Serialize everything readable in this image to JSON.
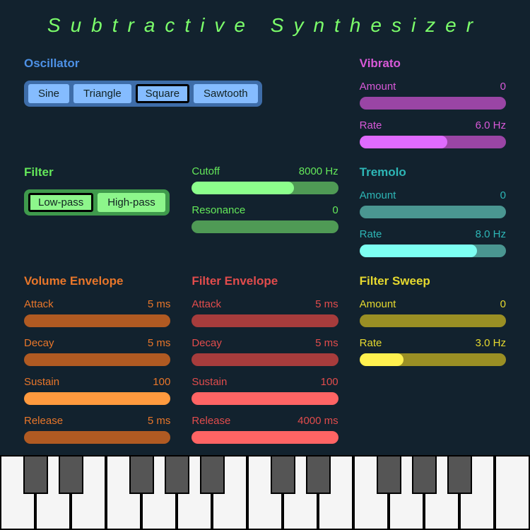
{
  "title": "Subtractive Synthesizer",
  "title_color": "#7cff6b",
  "oscillator": {
    "heading": "Oscillator",
    "heading_color": "#4d91e6",
    "group_bg": "#3e6da9",
    "btn_bg": "#85bcff",
    "btn_fg": "#122",
    "options": [
      "Sine",
      "Triangle",
      "Square",
      "Sawtooth"
    ],
    "selected_index": 2
  },
  "filter": {
    "heading": "Filter",
    "heading_color": "#64e85a",
    "group_bg": "#3f9a4c",
    "btn_bg": "#8df68b",
    "btn_fg": "#122",
    "options": [
      "Low-pass",
      "High-pass"
    ],
    "selected_index": 0,
    "params": [
      {
        "label": "Cutoff",
        "value_text": "8000 Hz",
        "fill_pct": 70,
        "track": "#4f9a55",
        "fill": "#8cff8c"
      },
      {
        "label": "Resonance",
        "value_text": "0",
        "fill_pct": 0,
        "track": "#4f9a55",
        "fill": "#8cff8c"
      }
    ]
  },
  "vol_env": {
    "heading": "Volume Envelope",
    "heading_color": "#e8762a",
    "text_color": "#e8762a",
    "params": [
      {
        "label": "Attack",
        "value_text": "5 ms",
        "fill_pct": 0,
        "track": "#b05a22",
        "fill": "#ff9a3e"
      },
      {
        "label": "Decay",
        "value_text": "5 ms",
        "fill_pct": 0,
        "track": "#b05a22",
        "fill": "#ff9a3e"
      },
      {
        "label": "Sustain",
        "value_text": "100",
        "fill_pct": 100,
        "track": "#b05a22",
        "fill": "#ff9a3e"
      },
      {
        "label": "Release",
        "value_text": "5 ms",
        "fill_pct": 0,
        "track": "#b05a22",
        "fill": "#ff9a3e"
      }
    ]
  },
  "filt_env": {
    "heading": "Filter Envelope",
    "heading_color": "#e14c4c",
    "text_color": "#e14c4c",
    "params": [
      {
        "label": "Attack",
        "value_text": "5 ms",
        "fill_pct": 0,
        "track": "#a73c3c",
        "fill": "#ff6464"
      },
      {
        "label": "Decay",
        "value_text": "5 ms",
        "fill_pct": 0,
        "track": "#a73c3c",
        "fill": "#ff6464"
      },
      {
        "label": "Sustain",
        "value_text": "100",
        "fill_pct": 100,
        "track": "#a73c3c",
        "fill": "#ff6464"
      },
      {
        "label": "Release",
        "value_text": "4000 ms",
        "fill_pct": 100,
        "track": "#a73c3c",
        "fill": "#ff6464"
      }
    ]
  },
  "vibrato": {
    "heading": "Vibrato",
    "heading_color": "#d859d8",
    "text_color": "#d859d8",
    "params": [
      {
        "label": "Amount",
        "value_text": "0",
        "fill_pct": 0,
        "track": "#9a45a5",
        "fill": "#df6bff"
      },
      {
        "label": "Rate",
        "value_text": "6.0 Hz",
        "fill_pct": 60,
        "track": "#9a45a5",
        "fill": "#df6bff"
      }
    ]
  },
  "tremolo": {
    "heading": "Tremolo",
    "heading_color": "#2db6b6",
    "text_color": "#2db6b6",
    "params": [
      {
        "label": "Amount",
        "value_text": "0",
        "fill_pct": 0,
        "track": "#4a9691",
        "fill": "#7dfff2"
      },
      {
        "label": "Rate",
        "value_text": "8.0 Hz",
        "fill_pct": 80,
        "track": "#4a9691",
        "fill": "#7dfff2"
      }
    ]
  },
  "sweep": {
    "heading": "Filter Sweep",
    "heading_color": "#e6d92f",
    "text_color": "#e6d92f",
    "params": [
      {
        "label": "Amount",
        "value_text": "0",
        "fill_pct": 0,
        "track": "#9a8f24",
        "fill": "#fff14f"
      },
      {
        "label": "Rate",
        "value_text": "3.0 Hz",
        "fill_pct": 30,
        "track": "#9a8f24",
        "fill": "#fff14f"
      }
    ]
  },
  "keyboard": {
    "white_keys": 15,
    "black_pattern": [
      1,
      1,
      0,
      1,
      1,
      1,
      0
    ]
  }
}
